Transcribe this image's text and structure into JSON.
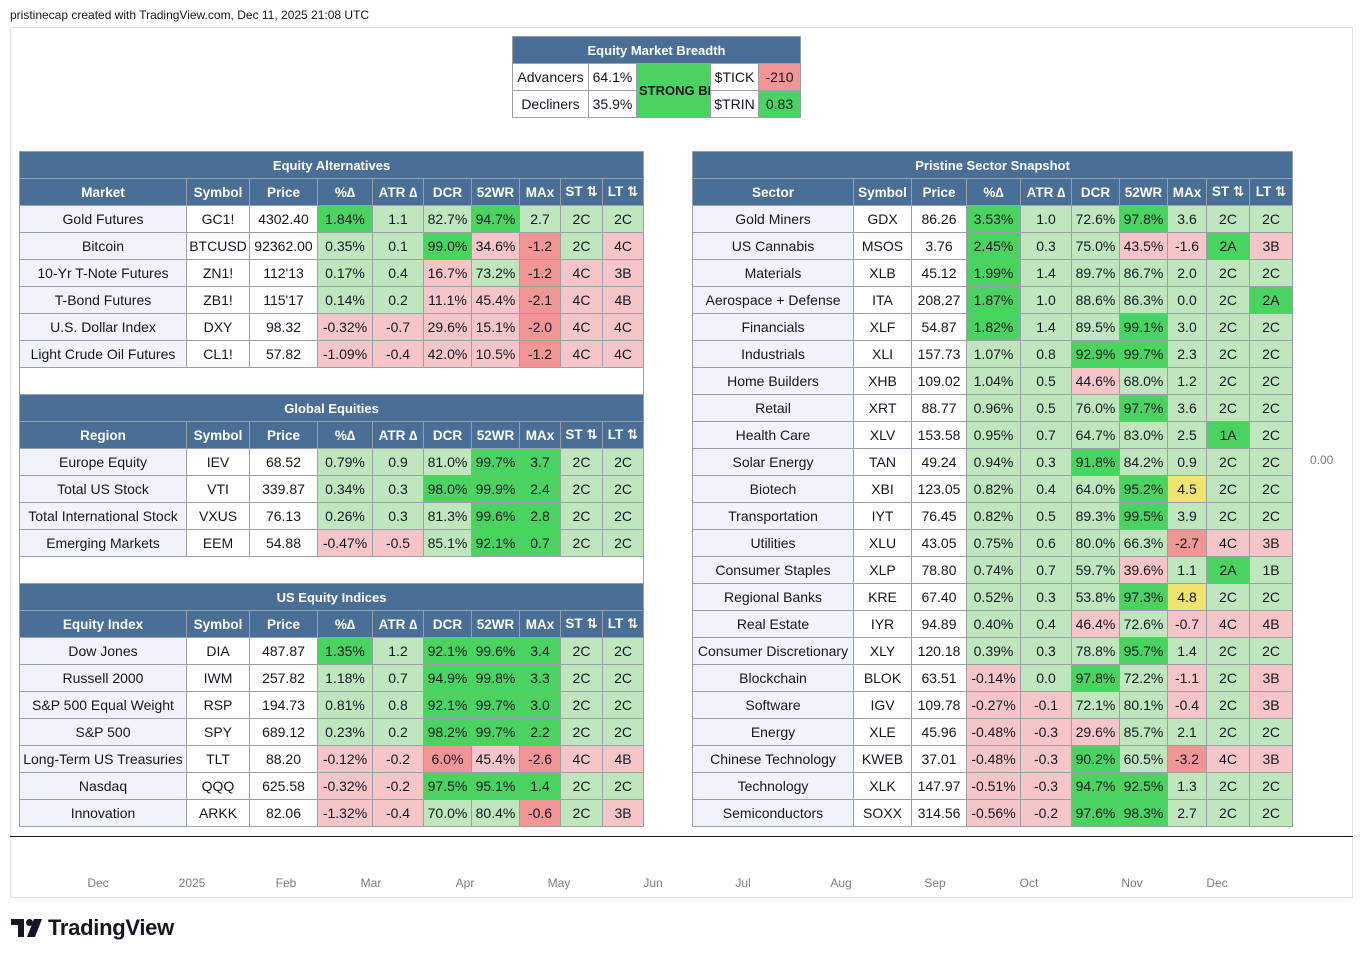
{
  "caption": "pristinecap created with TradingView.com, Dec 11, 2025 21:08 UTC",
  "price_label": "0.00",
  "time_axis": [
    "Dec",
    "2025",
    "Feb",
    "Mar",
    "Apr",
    "May",
    "Jun",
    "Jul",
    "Aug",
    "Sep",
    "Oct",
    "Nov",
    "Dec"
  ],
  "logo_text": "TradingView",
  "breadth": {
    "title": "Equity Market Breadth",
    "advancers_label": "Advancers",
    "advancers_value": "64.1%",
    "decliners_label": "Decliners",
    "decliners_value": "35.9%",
    "status": "STRONG BREADTH",
    "tick_label": "$TICK",
    "tick_value": "-210",
    "trin_label": "$TRIN",
    "trin_value": "0.83"
  },
  "colors": {
    "header_bg": "#4a6f97",
    "strong_green": "#4bd361",
    "light_green": "#bfe6bc",
    "light_red": "#f6c5c7",
    "red": "#f19595",
    "yellow": "#f1e46e"
  },
  "equity_alternatives": {
    "title": "Equity Alternatives",
    "headers": [
      "Market",
      "Symbol",
      "Price",
      "%∆",
      "ATR ∆",
      "DCR",
      "52WR",
      "MAx",
      "ST ⇅",
      "LT ⇅"
    ],
    "rows": [
      [
        "Gold Futures",
        "GC1!",
        "4302.40",
        "1.84%",
        "1.1",
        "82.7%",
        "94.7%",
        "2.7",
        "2C",
        "2C"
      ],
      [
        "Bitcoin",
        "BTCUSD",
        "92362.00",
        "0.35%",
        "0.1",
        "99.0%",
        "34.6%",
        "-1.2",
        "2C",
        "4C"
      ],
      [
        "10-Yr T-Note Futures",
        "ZN1!",
        "112'13",
        "0.17%",
        "0.4",
        "16.7%",
        "73.2%",
        "-1.2",
        "4C",
        "3B"
      ],
      [
        "T-Bond Futures",
        "ZB1!",
        "115'17",
        "0.14%",
        "0.2",
        "11.1%",
        "45.4%",
        "-2.1",
        "4C",
        "4B"
      ],
      [
        "U.S. Dollar Index",
        "DXY",
        "98.32",
        "-0.32%",
        "-0.7",
        "29.6%",
        "15.1%",
        "-2.0",
        "4C",
        "4C"
      ],
      [
        "Light Crude Oil Futures",
        "CL1!",
        "57.82",
        "-1.09%",
        "-0.4",
        "42.0%",
        "10.5%",
        "-1.2",
        "4C",
        "4C"
      ]
    ],
    "colors": [
      [
        "",
        "",
        "",
        "bg",
        "lg",
        "lg",
        "bg",
        "lg",
        "lg",
        "lg"
      ],
      [
        "",
        "",
        "",
        "lg",
        "lg",
        "bg",
        "lr",
        "r",
        "lg",
        "lr"
      ],
      [
        "",
        "",
        "",
        "lg",
        "lg",
        "lr",
        "lg",
        "r",
        "lr",
        "lr"
      ],
      [
        "",
        "",
        "",
        "lg",
        "lg",
        "lr",
        "lr",
        "r",
        "lr",
        "lr"
      ],
      [
        "",
        "",
        "",
        "lr",
        "lr",
        "lr",
        "lr",
        "r",
        "lr",
        "lr"
      ],
      [
        "",
        "",
        "",
        "lr",
        "lr",
        "lr",
        "lr",
        "r",
        "lr",
        "lr"
      ]
    ]
  },
  "global_equities": {
    "title": "Global Equities",
    "headers": [
      "Region",
      "Symbol",
      "Price",
      "%∆",
      "ATR ∆",
      "DCR",
      "52WR",
      "MAx",
      "ST ⇅",
      "LT ⇅"
    ],
    "rows": [
      [
        "Europe Equity",
        "IEV",
        "68.52",
        "0.79%",
        "0.9",
        "81.0%",
        "99.7%",
        "3.7",
        "2C",
        "2C"
      ],
      [
        "Total US Stock",
        "VTI",
        "339.87",
        "0.34%",
        "0.3",
        "98.0%",
        "99.9%",
        "2.4",
        "2C",
        "2C"
      ],
      [
        "Total International Stock",
        "VXUS",
        "76.13",
        "0.26%",
        "0.3",
        "81.3%",
        "99.6%",
        "2.8",
        "2C",
        "2C"
      ],
      [
        "Emerging Markets",
        "EEM",
        "54.88",
        "-0.47%",
        "-0.5",
        "85.1%",
        "92.1%",
        "0.7",
        "2C",
        "2C"
      ]
    ],
    "colors": [
      [
        "",
        "",
        "",
        "lg",
        "lg",
        "lg",
        "bg",
        "bg",
        "lg",
        "lg"
      ],
      [
        "",
        "",
        "",
        "lg",
        "lg",
        "bg",
        "bg",
        "bg",
        "lg",
        "lg"
      ],
      [
        "",
        "",
        "",
        "lg",
        "lg",
        "lg",
        "bg",
        "bg",
        "lg",
        "lg"
      ],
      [
        "",
        "",
        "",
        "lr",
        "lr",
        "lg",
        "bg",
        "bg",
        "lg",
        "lg"
      ]
    ]
  },
  "us_equity_indices": {
    "title": "US Equity Indices",
    "headers": [
      "Equity Index",
      "Symbol",
      "Price",
      "%∆",
      "ATR ∆",
      "DCR",
      "52WR",
      "MAx",
      "ST ⇅",
      "LT ⇅"
    ],
    "rows": [
      [
        "Dow Jones",
        "DIA",
        "487.87",
        "1.35%",
        "1.2",
        "92.1%",
        "99.6%",
        "3.4",
        "2C",
        "2C"
      ],
      [
        "Russell 2000",
        "IWM",
        "257.82",
        "1.18%",
        "0.7",
        "94.9%",
        "99.8%",
        "3.3",
        "2C",
        "2C"
      ],
      [
        "S&P 500 Equal Weight",
        "RSP",
        "194.73",
        "0.81%",
        "0.8",
        "92.1%",
        "99.7%",
        "3.0",
        "2C",
        "2C"
      ],
      [
        "S&P 500",
        "SPY",
        "689.12",
        "0.23%",
        "0.2",
        "98.2%",
        "99.7%",
        "2.2",
        "2C",
        "2C"
      ],
      [
        "Long-Term US Treasuries",
        "TLT",
        "88.20",
        "-0.12%",
        "-0.2",
        "6.0%",
        "45.4%",
        "-2.6",
        "4C",
        "4B"
      ],
      [
        "Nasdaq",
        "QQQ",
        "625.58",
        "-0.32%",
        "-0.2",
        "97.5%",
        "95.1%",
        "1.4",
        "2C",
        "2C"
      ],
      [
        "Innovation",
        "ARKK",
        "82.06",
        "-1.32%",
        "-0.4",
        "70.0%",
        "80.4%",
        "-0.6",
        "2C",
        "3B"
      ]
    ],
    "colors": [
      [
        "",
        "",
        "",
        "bg",
        "lg",
        "bg",
        "bg",
        "bg",
        "lg",
        "lg"
      ],
      [
        "",
        "",
        "",
        "lg",
        "lg",
        "bg",
        "bg",
        "bg",
        "lg",
        "lg"
      ],
      [
        "",
        "",
        "",
        "lg",
        "lg",
        "bg",
        "bg",
        "bg",
        "lg",
        "lg"
      ],
      [
        "",
        "",
        "",
        "lg",
        "lg",
        "bg",
        "bg",
        "bg",
        "lg",
        "lg"
      ],
      [
        "",
        "",
        "",
        "lr",
        "lr",
        "r",
        "lr",
        "r",
        "lr",
        "lr"
      ],
      [
        "",
        "",
        "",
        "lr",
        "lr",
        "bg",
        "bg",
        "bg",
        "lg",
        "lg"
      ],
      [
        "",
        "",
        "",
        "lr",
        "lr",
        "lg",
        "lg",
        "r",
        "lg",
        "lr"
      ]
    ]
  },
  "sector_snapshot": {
    "title": "Pristine Sector Snapshot",
    "headers": [
      "Sector",
      "Symbol",
      "Price",
      "%∆",
      "ATR ∆",
      "DCR",
      "52WR",
      "MAx",
      "ST ⇅",
      "LT ⇅"
    ],
    "rows": [
      [
        "Gold Miners",
        "GDX",
        "86.26",
        "3.53%",
        "1.0",
        "72.6%",
        "97.8%",
        "3.6",
        "2C",
        "2C"
      ],
      [
        "US Cannabis",
        "MSOS",
        "3.76",
        "2.45%",
        "0.3",
        "75.0%",
        "43.5%",
        "-1.6",
        "2A",
        "3B"
      ],
      [
        "Materials",
        "XLB",
        "45.12",
        "1.99%",
        "1.4",
        "89.7%",
        "86.7%",
        "2.0",
        "2C",
        "2C"
      ],
      [
        "Aerospace + Defense",
        "ITA",
        "208.27",
        "1.87%",
        "1.0",
        "88.6%",
        "86.3%",
        "0.0",
        "2C",
        "2A"
      ],
      [
        "Financials",
        "XLF",
        "54.87",
        "1.82%",
        "1.4",
        "89.5%",
        "99.1%",
        "3.0",
        "2C",
        "2C"
      ],
      [
        "Industrials",
        "XLI",
        "157.73",
        "1.07%",
        "0.8",
        "92.9%",
        "99.7%",
        "2.3",
        "2C",
        "2C"
      ],
      [
        "Home Builders",
        "XHB",
        "109.02",
        "1.04%",
        "0.5",
        "44.6%",
        "68.0%",
        "1.2",
        "2C",
        "2C"
      ],
      [
        "Retail",
        "XRT",
        "88.77",
        "0.96%",
        "0.5",
        "76.0%",
        "97.7%",
        "3.6",
        "2C",
        "2C"
      ],
      [
        "Health Care",
        "XLV",
        "153.58",
        "0.95%",
        "0.7",
        "64.7%",
        "83.0%",
        "2.5",
        "1A",
        "2C"
      ],
      [
        "Solar Energy",
        "TAN",
        "49.24",
        "0.94%",
        "0.3",
        "91.8%",
        "84.2%",
        "0.9",
        "2C",
        "2C"
      ],
      [
        "Biotech",
        "XBI",
        "123.05",
        "0.82%",
        "0.4",
        "64.0%",
        "95.2%",
        "4.5",
        "2C",
        "2C"
      ],
      [
        "Transportation",
        "IYT",
        "76.45",
        "0.82%",
        "0.5",
        "89.3%",
        "99.5%",
        "3.9",
        "2C",
        "2C"
      ],
      [
        "Utilities",
        "XLU",
        "43.05",
        "0.75%",
        "0.6",
        "80.0%",
        "66.3%",
        "-2.7",
        "4C",
        "3B"
      ],
      [
        "Consumer Staples",
        "XLP",
        "78.80",
        "0.74%",
        "0.7",
        "59.7%",
        "39.6%",
        "1.1",
        "2A",
        "1B"
      ],
      [
        "Regional Banks",
        "KRE",
        "67.40",
        "0.52%",
        "0.3",
        "53.8%",
        "97.3%",
        "4.8",
        "2C",
        "2C"
      ],
      [
        "Real Estate",
        "IYR",
        "94.89",
        "0.40%",
        "0.4",
        "46.4%",
        "72.6%",
        "-0.7",
        "4C",
        "4B"
      ],
      [
        "Consumer Discretionary",
        "XLY",
        "120.18",
        "0.39%",
        "0.3",
        "78.8%",
        "95.7%",
        "1.4",
        "2C",
        "2C"
      ],
      [
        "Blockchain",
        "BLOK",
        "63.51",
        "-0.14%",
        "0.0",
        "97.8%",
        "72.2%",
        "-1.1",
        "2C",
        "3B"
      ],
      [
        "Software",
        "IGV",
        "109.78",
        "-0.27%",
        "-0.1",
        "72.1%",
        "80.1%",
        "-0.4",
        "2C",
        "3B"
      ],
      [
        "Energy",
        "XLE",
        "45.96",
        "-0.48%",
        "-0.3",
        "29.6%",
        "85.7%",
        "2.1",
        "2C",
        "2C"
      ],
      [
        "Chinese Technology",
        "KWEB",
        "37.01",
        "-0.48%",
        "-0.3",
        "90.2%",
        "60.5%",
        "-3.2",
        "4C",
        "3B"
      ],
      [
        "Technology",
        "XLK",
        "147.97",
        "-0.51%",
        "-0.3",
        "94.7%",
        "92.5%",
        "1.3",
        "2C",
        "2C"
      ],
      [
        "Semiconductors",
        "SOXX",
        "314.56",
        "-0.56%",
        "-0.2",
        "97.6%",
        "98.3%",
        "2.7",
        "2C",
        "2C"
      ]
    ],
    "colors": [
      [
        "",
        "",
        "",
        "bg",
        "lg",
        "lg",
        "bg",
        "lg",
        "lg",
        "lg"
      ],
      [
        "",
        "",
        "",
        "bg",
        "lg",
        "lg",
        "lr",
        "lr",
        "bg",
        "lr"
      ],
      [
        "",
        "",
        "",
        "bg",
        "lg",
        "lg",
        "lg",
        "lg",
        "lg",
        "lg"
      ],
      [
        "",
        "",
        "",
        "bg",
        "lg",
        "lg",
        "lg",
        "lg",
        "lg",
        "bg"
      ],
      [
        "",
        "",
        "",
        "bg",
        "lg",
        "lg",
        "bg",
        "lg",
        "lg",
        "lg"
      ],
      [
        "",
        "",
        "",
        "lg",
        "lg",
        "bg",
        "bg",
        "lg",
        "lg",
        "lg"
      ],
      [
        "",
        "",
        "",
        "lg",
        "lg",
        "lr",
        "lg",
        "lg",
        "lg",
        "lg"
      ],
      [
        "",
        "",
        "",
        "lg",
        "lg",
        "lg",
        "bg",
        "lg",
        "lg",
        "lg"
      ],
      [
        "",
        "",
        "",
        "lg",
        "lg",
        "lg",
        "lg",
        "lg",
        "bg",
        "lg"
      ],
      [
        "",
        "",
        "",
        "lg",
        "lg",
        "bg",
        "lg",
        "lg",
        "lg",
        "lg"
      ],
      [
        "",
        "",
        "",
        "lg",
        "lg",
        "lg",
        "bg",
        "y",
        "lg",
        "lg"
      ],
      [
        "",
        "",
        "",
        "lg",
        "lg",
        "lg",
        "bg",
        "lg",
        "lg",
        "lg"
      ],
      [
        "",
        "",
        "",
        "lg",
        "lg",
        "lg",
        "lg",
        "r",
        "lr",
        "lr"
      ],
      [
        "",
        "",
        "",
        "lg",
        "lg",
        "lg",
        "lr",
        "lg",
        "bg",
        "lg"
      ],
      [
        "",
        "",
        "",
        "lg",
        "lg",
        "lg",
        "bg",
        "y",
        "lg",
        "lg"
      ],
      [
        "",
        "",
        "",
        "lg",
        "lg",
        "lr",
        "lg",
        "lr",
        "lr",
        "lr"
      ],
      [
        "",
        "",
        "",
        "lg",
        "lg",
        "lg",
        "bg",
        "lg",
        "lg",
        "lg"
      ],
      [
        "",
        "",
        "",
        "lr",
        "lg",
        "bg",
        "lg",
        "lr",
        "lg",
        "lr"
      ],
      [
        "",
        "",
        "",
        "lr",
        "lr",
        "lg",
        "lg",
        "lr",
        "lg",
        "lr"
      ],
      [
        "",
        "",
        "",
        "lr",
        "lr",
        "lr",
        "lg",
        "lg",
        "lg",
        "lg"
      ],
      [
        "",
        "",
        "",
        "lr",
        "lr",
        "bg",
        "lg",
        "r",
        "lr",
        "lr"
      ],
      [
        "",
        "",
        "",
        "lr",
        "lr",
        "bg",
        "bg",
        "lg",
        "lg",
        "lg"
      ],
      [
        "",
        "",
        "",
        "lr",
        "lr",
        "bg",
        "bg",
        "lg",
        "lg",
        "lg"
      ]
    ]
  }
}
